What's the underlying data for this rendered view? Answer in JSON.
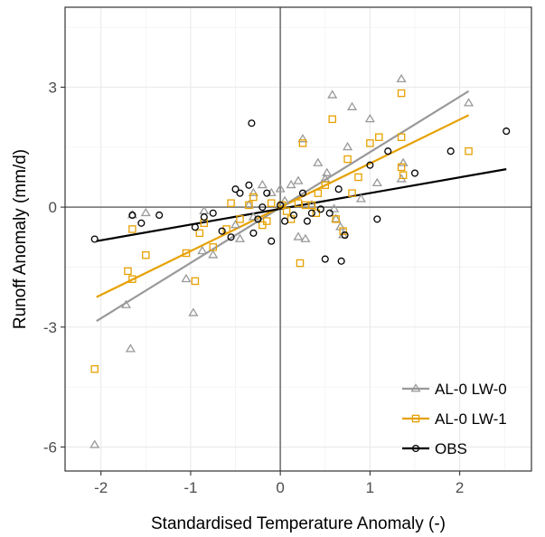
{
  "chart_data": {
    "type": "scatter",
    "title": "",
    "xlabel": "Standardised Temperature Anomaly (-)",
    "ylabel": "Runoff Anomaly (mm/d)",
    "xlim": [
      -2.4,
      2.8
    ],
    "ylim": [
      -6.6,
      5.0
    ],
    "x_ticks": [
      -2,
      -1,
      0,
      1,
      2
    ],
    "x_tick_labels": [
      "-2",
      "-1",
      "0",
      "1",
      "2"
    ],
    "y_ticks": [
      -6,
      -3,
      0,
      3
    ],
    "y_tick_labels": [
      "-6",
      "-3",
      "0",
      "3"
    ],
    "reference_lines": {
      "x": 0,
      "y": 0
    },
    "grid": true,
    "legend_position": "bottom-right",
    "series": [
      {
        "name": "AL-0 LW-0",
        "marker": "triangle",
        "color": "#999999",
        "fit_line": {
          "x": [
            -2.05,
            2.1
          ],
          "y": [
            -2.85,
            2.9
          ]
        },
        "points": [
          [
            -2.07,
            -5.95
          ],
          [
            -1.67,
            -3.55
          ],
          [
            -1.72,
            -2.45
          ],
          [
            -0.97,
            -2.65
          ],
          [
            -1.05,
            -1.8
          ],
          [
            -0.87,
            -1.1
          ],
          [
            -0.75,
            -1.2
          ],
          [
            -0.45,
            -0.8
          ],
          [
            -0.5,
            -0.45
          ],
          [
            -0.3,
            -0.25
          ],
          [
            -1.65,
            -0.2
          ],
          [
            -1.5,
            -0.15
          ],
          [
            -0.85,
            -0.1
          ],
          [
            -0.35,
            0.05
          ],
          [
            -0.3,
            0.35
          ],
          [
            -0.2,
            0.55
          ],
          [
            -0.1,
            0.35
          ],
          [
            0.0,
            0.45
          ],
          [
            0.05,
            0.15
          ],
          [
            0.12,
            0.55
          ],
          [
            0.2,
            0.65
          ],
          [
            0.25,
            1.7
          ],
          [
            0.2,
            -0.75
          ],
          [
            0.28,
            -0.8
          ],
          [
            0.35,
            0.05
          ],
          [
            0.42,
            1.1
          ],
          [
            0.5,
            0.7
          ],
          [
            0.52,
            0.85
          ],
          [
            0.58,
            2.8
          ],
          [
            0.62,
            -0.3
          ],
          [
            0.67,
            -0.5
          ],
          [
            0.7,
            -0.7
          ],
          [
            0.75,
            1.5
          ],
          [
            0.8,
            2.5
          ],
          [
            0.9,
            0.2
          ],
          [
            1.0,
            2.2
          ],
          [
            1.08,
            0.6
          ],
          [
            1.35,
            3.2
          ],
          [
            1.37,
            1.1
          ],
          [
            1.35,
            0.7
          ],
          [
            2.1,
            2.6
          ],
          [
            0.6,
            -0.05
          ]
        ]
      },
      {
        "name": "AL-0 LW-1",
        "marker": "square",
        "color": "#e6a100",
        "fit_line": {
          "x": [
            -2.05,
            2.1
          ],
          "y": [
            -2.25,
            2.3
          ]
        },
        "points": [
          [
            -2.07,
            -4.05
          ],
          [
            -1.7,
            -1.6
          ],
          [
            -1.65,
            -1.8
          ],
          [
            -1.65,
            -0.55
          ],
          [
            -1.5,
            -1.2
          ],
          [
            -1.05,
            -1.15
          ],
          [
            -0.95,
            -1.85
          ],
          [
            -0.9,
            -0.65
          ],
          [
            -0.85,
            -0.4
          ],
          [
            -0.75,
            -1.0
          ],
          [
            -0.6,
            -0.55
          ],
          [
            -0.55,
            0.1
          ],
          [
            -0.45,
            -0.3
          ],
          [
            -0.35,
            0.05
          ],
          [
            -0.3,
            0.25
          ],
          [
            -0.2,
            -0.45
          ],
          [
            -0.15,
            -0.35
          ],
          [
            -0.1,
            0.1
          ],
          [
            0.02,
            0.05
          ],
          [
            0.07,
            -0.1
          ],
          [
            0.12,
            -0.3
          ],
          [
            0.2,
            0.1
          ],
          [
            0.22,
            -1.4
          ],
          [
            0.25,
            1.6
          ],
          [
            0.28,
            0.05
          ],
          [
            0.35,
            0.05
          ],
          [
            0.42,
            0.35
          ],
          [
            0.5,
            0.55
          ],
          [
            0.58,
            2.2
          ],
          [
            0.62,
            -0.3
          ],
          [
            0.7,
            -0.6
          ],
          [
            0.75,
            1.2
          ],
          [
            0.8,
            0.35
          ],
          [
            0.87,
            0.75
          ],
          [
            1.0,
            1.6
          ],
          [
            1.1,
            1.75
          ],
          [
            1.35,
            2.85
          ],
          [
            1.35,
            1.0
          ],
          [
            1.35,
            1.75
          ],
          [
            1.37,
            0.8
          ],
          [
            2.1,
            1.4
          ],
          [
            0.4,
            -0.15
          ]
        ]
      },
      {
        "name": "OBS",
        "marker": "circle",
        "color": "#000000",
        "fit_line": {
          "x": [
            -2.05,
            2.52
          ],
          "y": [
            -0.85,
            0.95
          ]
        },
        "points": [
          [
            -2.07,
            -0.8
          ],
          [
            -1.65,
            -0.2
          ],
          [
            -1.55,
            -0.4
          ],
          [
            -1.35,
            -0.2
          ],
          [
            -0.95,
            -0.5
          ],
          [
            -0.85,
            -0.25
          ],
          [
            -0.75,
            -0.15
          ],
          [
            -0.65,
            -0.6
          ],
          [
            -0.55,
            -0.75
          ],
          [
            -0.5,
            0.45
          ],
          [
            -0.45,
            0.35
          ],
          [
            -0.35,
            0.55
          ],
          [
            -0.32,
            2.1
          ],
          [
            -0.3,
            -0.65
          ],
          [
            -0.25,
            -0.3
          ],
          [
            -0.15,
            0.35
          ],
          [
            -0.1,
            -0.85
          ],
          [
            0.0,
            0.05
          ],
          [
            0.05,
            -0.35
          ],
          [
            0.15,
            -0.2
          ],
          [
            0.25,
            0.35
          ],
          [
            0.35,
            -0.15
          ],
          [
            0.45,
            -0.05
          ],
          [
            0.5,
            -1.3
          ],
          [
            0.55,
            -0.15
          ],
          [
            0.65,
            0.45
          ],
          [
            0.68,
            -1.35
          ],
          [
            0.72,
            -0.7
          ],
          [
            1.0,
            1.05
          ],
          [
            1.08,
            -0.3
          ],
          [
            1.2,
            1.4
          ],
          [
            1.5,
            0.85
          ],
          [
            1.9,
            1.4
          ],
          [
            2.52,
            1.9
          ],
          [
            -0.2,
            0.0
          ],
          [
            0.3,
            -0.35
          ]
        ]
      }
    ]
  }
}
